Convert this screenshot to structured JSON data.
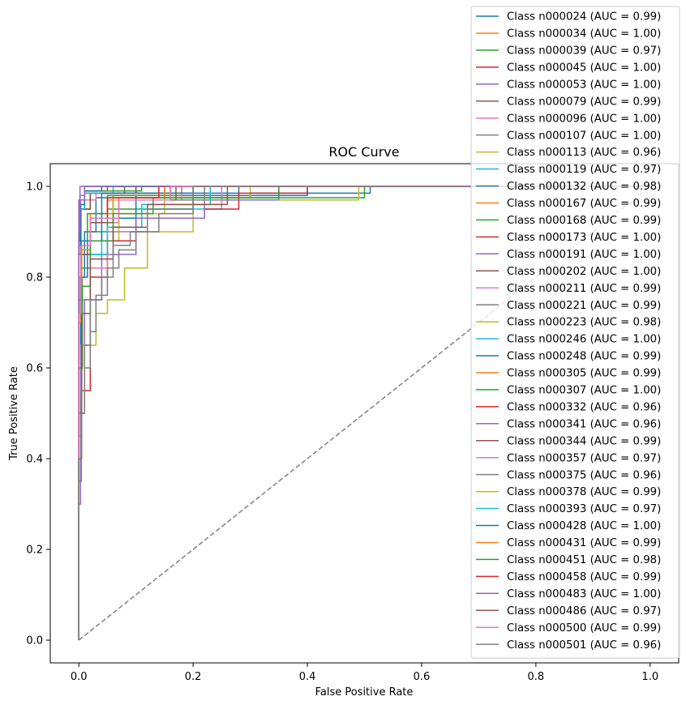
{
  "chart_data": {
    "type": "line",
    "title": "ROC Curve",
    "xlabel": "False Positive Rate",
    "ylabel": "True Positive Rate",
    "xlim": [
      -0.05,
      1.05
    ],
    "ylim": [
      -0.05,
      1.05
    ],
    "xticks": [
      "0.0",
      "0.2",
      "0.4",
      "0.6",
      "0.8",
      "1.0"
    ],
    "yticks": [
      "0.0",
      "0.2",
      "0.4",
      "0.6",
      "0.8",
      "1.0"
    ],
    "grid": false,
    "legend_position": "top-right",
    "series": [
      {
        "name": "Class n000024 (AUC = 0.99)",
        "color": "#1f77b4",
        "x": [
          0,
          0.0,
          0.003,
          0.003,
          0.01,
          0.01,
          0.03,
          0.03,
          0.3,
          0.3,
          0.51,
          0.51,
          1
        ],
        "y": [
          0,
          0.45,
          0.45,
          0.8,
          0.8,
          0.9,
          0.9,
          0.975,
          0.975,
          0.985,
          0.985,
          1,
          1
        ]
      },
      {
        "name": "Class n000034 (AUC = 1.00)",
        "color": "#ff7f0e",
        "x": [
          0,
          0.0,
          0.004,
          0.004,
          0.02,
          0.02,
          0.14,
          0.14,
          1
        ],
        "y": [
          0,
          0.8,
          0.8,
          0.95,
          0.95,
          0.985,
          0.985,
          1,
          1
        ]
      },
      {
        "name": "Class n000039 (AUC = 0.97)",
        "color": "#2ca02c",
        "x": [
          0,
          0.0,
          0.005,
          0.005,
          0.02,
          0.02,
          0.05,
          0.05,
          0.2,
          0.2,
          0.5,
          0.5,
          1
        ],
        "y": [
          0,
          0.6,
          0.6,
          0.82,
          0.82,
          0.9,
          0.9,
          0.95,
          0.95,
          0.975,
          0.975,
          1,
          1
        ]
      },
      {
        "name": "Class n000045 (AUC = 1.00)",
        "color": "#d62728",
        "x": [
          0,
          0.0,
          0.003,
          0.003,
          0.01,
          0.01,
          0.1,
          0.1,
          1
        ],
        "y": [
          0,
          0.85,
          0.85,
          0.95,
          0.95,
          0.985,
          0.985,
          1,
          1
        ]
      },
      {
        "name": "Class n000053 (AUC = 1.00)",
        "color": "#9467bd",
        "x": [
          0,
          0.0,
          0.002,
          0.002,
          1
        ],
        "y": [
          0,
          0.97,
          0.97,
          1,
          1
        ]
      },
      {
        "name": "Class n000079 (AUC = 0.99)",
        "color": "#8c564b",
        "x": [
          0,
          0.0,
          0.005,
          0.005,
          0.02,
          0.02,
          0.06,
          0.06,
          0.2,
          0.2,
          1
        ],
        "y": [
          0,
          0.7,
          0.7,
          0.85,
          0.85,
          0.92,
          0.92,
          0.97,
          0.97,
          1,
          1
        ]
      },
      {
        "name": "Class n000096 (AUC = 1.00)",
        "color": "#e377c2",
        "x": [
          0,
          0.0,
          0.003,
          0.003,
          0.03,
          0.03,
          0.15,
          0.15,
          1
        ],
        "y": [
          0,
          0.9,
          0.9,
          0.97,
          0.97,
          0.985,
          0.985,
          1,
          1
        ]
      },
      {
        "name": "Class n000107 (AUC = 1.00)",
        "color": "#7f7f7f",
        "x": [
          0,
          0.0,
          0.003,
          0.003,
          0.02,
          0.02,
          0.2,
          0.2,
          1
        ],
        "y": [
          0,
          0.88,
          0.88,
          0.95,
          0.95,
          0.985,
          0.985,
          1,
          1
        ]
      },
      {
        "name": "Class n000113 (AUC = 0.96)",
        "color": "#bcbd22",
        "x": [
          0,
          0.0,
          0.01,
          0.01,
          0.03,
          0.03,
          0.05,
          0.05,
          0.08,
          0.08,
          0.12,
          0.12,
          0.2,
          0.2,
          0.49,
          0.49,
          1
        ],
        "y": [
          0,
          0.5,
          0.5,
          0.65,
          0.65,
          0.72,
          0.72,
          0.75,
          0.75,
          0.82,
          0.82,
          0.9,
          0.9,
          0.97,
          0.97,
          1,
          1
        ]
      },
      {
        "name": "Class n000119 (AUC = 0.97)",
        "color": "#17becf",
        "x": [
          0,
          0.0,
          0.005,
          0.005,
          0.02,
          0.02,
          0.04,
          0.04,
          0.1,
          0.1,
          0.25,
          0.25,
          1
        ],
        "y": [
          0,
          0.6,
          0.6,
          0.75,
          0.75,
          0.85,
          0.85,
          0.9,
          0.9,
          0.95,
          0.95,
          1,
          1
        ]
      },
      {
        "name": "Class n000132 (AUC = 0.98)",
        "color": "#1f77b4",
        "x": [
          0,
          0.0,
          0.006,
          0.006,
          0.015,
          0.015,
          0.04,
          0.04,
          0.1,
          0.1,
          0.4,
          0.4,
          1
        ],
        "y": [
          0,
          0.6,
          0.6,
          0.8,
          0.8,
          0.88,
          0.88,
          0.93,
          0.93,
          0.98,
          0.98,
          1,
          1
        ]
      },
      {
        "name": "Class n000167 (AUC = 0.99)",
        "color": "#ff7f0e",
        "x": [
          0,
          0.0,
          0.004,
          0.004,
          0.02,
          0.02,
          0.06,
          0.06,
          0.15,
          0.15,
          1
        ],
        "y": [
          0,
          0.7,
          0.7,
          0.87,
          0.87,
          0.94,
          0.94,
          0.98,
          0.98,
          1,
          1
        ]
      },
      {
        "name": "Class n000168 (AUC = 0.99)",
        "color": "#2ca02c",
        "x": [
          0,
          0.0,
          0.004,
          0.004,
          0.015,
          0.015,
          0.05,
          0.05,
          0.18,
          0.18,
          1
        ],
        "y": [
          0,
          0.75,
          0.75,
          0.88,
          0.88,
          0.94,
          0.94,
          0.98,
          0.98,
          1,
          1
        ]
      },
      {
        "name": "Class n000173 (AUC = 1.00)",
        "color": "#d62728",
        "x": [
          0,
          0.0,
          0.002,
          0.002,
          0.01,
          0.01,
          0.05,
          0.05,
          1
        ],
        "y": [
          0,
          0.9,
          0.9,
          0.97,
          0.97,
          0.99,
          0.99,
          1,
          1
        ]
      },
      {
        "name": "Class n000191 (AUC = 1.00)",
        "color": "#9467bd",
        "x": [
          0,
          0.0,
          0.002,
          0.002,
          0.01,
          0.01,
          1
        ],
        "y": [
          0,
          0.93,
          0.93,
          0.98,
          0.98,
          1,
          1
        ]
      },
      {
        "name": "Class n000202 (AUC = 1.00)",
        "color": "#8c564b",
        "x": [
          0,
          0.0,
          0.003,
          0.003,
          0.02,
          0.02,
          0.08,
          0.08,
          1
        ],
        "y": [
          0,
          0.85,
          0.85,
          0.95,
          0.95,
          0.985,
          0.985,
          1,
          1
        ]
      },
      {
        "name": "Class n000211 (AUC = 0.99)",
        "color": "#e377c2",
        "x": [
          0,
          0.0,
          0.005,
          0.005,
          0.02,
          0.02,
          0.07,
          0.07,
          0.18,
          0.18,
          1
        ],
        "y": [
          0,
          0.7,
          0.7,
          0.85,
          0.85,
          0.92,
          0.92,
          0.97,
          0.97,
          1,
          1
        ]
      },
      {
        "name": "Class n000221 (AUC = 0.99)",
        "color": "#7f7f7f",
        "x": [
          0,
          0.0,
          0.004,
          0.004,
          0.02,
          0.02,
          0.05,
          0.05,
          0.22,
          0.22,
          1
        ],
        "y": [
          0,
          0.72,
          0.72,
          0.87,
          0.87,
          0.93,
          0.93,
          0.97,
          0.97,
          1,
          1
        ]
      },
      {
        "name": "Class n000223 (AUC = 0.98)",
        "color": "#bcbd22",
        "x": [
          0,
          0.0,
          0.006,
          0.006,
          0.02,
          0.02,
          0.07,
          0.07,
          0.15,
          0.15,
          0.3,
          0.3,
          1
        ],
        "y": [
          0,
          0.6,
          0.6,
          0.78,
          0.78,
          0.88,
          0.88,
          0.94,
          0.94,
          0.975,
          0.975,
          1,
          1
        ]
      },
      {
        "name": "Class n000246 (AUC = 1.00)",
        "color": "#17becf",
        "x": [
          0,
          0.0,
          0.003,
          0.003,
          0.01,
          0.01,
          0.06,
          0.06,
          1
        ],
        "y": [
          0,
          0.85,
          0.85,
          0.95,
          0.95,
          0.985,
          0.985,
          1,
          1
        ]
      },
      {
        "name": "Class n000248 (AUC = 0.99)",
        "color": "#1f77b4",
        "x": [
          0,
          0.0,
          0.004,
          0.004,
          0.02,
          0.02,
          0.04,
          0.04,
          0.28,
          0.28,
          1
        ],
        "y": [
          0,
          0.75,
          0.75,
          0.88,
          0.88,
          0.93,
          0.93,
          0.985,
          0.985,
          1,
          1
        ]
      },
      {
        "name": "Class n000305 (AUC = 0.99)",
        "color": "#ff7f0e",
        "x": [
          0,
          0.0,
          0.005,
          0.005,
          0.02,
          0.02,
          0.05,
          0.05,
          0.16,
          0.16,
          1
        ],
        "y": [
          0,
          0.72,
          0.72,
          0.87,
          0.87,
          0.93,
          0.93,
          0.97,
          0.97,
          1,
          1
        ]
      },
      {
        "name": "Class n000307 (AUC = 1.00)",
        "color": "#2ca02c",
        "x": [
          0,
          0.0,
          0.002,
          0.002,
          0.01,
          0.01,
          0.11,
          0.11,
          1
        ],
        "y": [
          0,
          0.88,
          0.88,
          0.96,
          0.96,
          0.99,
          0.99,
          1,
          1
        ]
      },
      {
        "name": "Class n000332 (AUC = 0.96)",
        "color": "#d62728",
        "x": [
          0,
          0.0,
          0.004,
          0.004,
          0.02,
          0.02,
          0.05,
          0.05,
          0.1,
          0.1,
          0.22,
          0.22,
          0.28,
          0.28,
          0.4,
          0.4,
          1
        ],
        "y": [
          0,
          0.35,
          0.35,
          0.55,
          0.55,
          0.8,
          0.8,
          0.88,
          0.88,
          0.93,
          0.93,
          0.95,
          0.95,
          0.985,
          0.985,
          1,
          1
        ]
      },
      {
        "name": "Class n000341 (AUC = 0.96)",
        "color": "#9467bd",
        "x": [
          0,
          0.0,
          0.003,
          0.003,
          0.01,
          0.01,
          0.04,
          0.04,
          0.1,
          0.1,
          0.22,
          0.22,
          0.35,
          0.35,
          1
        ],
        "y": [
          0,
          0.3,
          0.3,
          0.5,
          0.5,
          0.75,
          0.75,
          0.85,
          0.85,
          0.93,
          0.93,
          0.97,
          0.97,
          1,
          1
        ]
      },
      {
        "name": "Class n000344 (AUC = 0.99)",
        "color": "#8c564b",
        "x": [
          0,
          0.0,
          0.005,
          0.005,
          0.02,
          0.02,
          0.06,
          0.06,
          0.17,
          0.17,
          1
        ],
        "y": [
          0,
          0.7,
          0.7,
          0.85,
          0.85,
          0.92,
          0.92,
          0.97,
          0.97,
          1,
          1
        ]
      },
      {
        "name": "Class n000357 (AUC = 0.97)",
        "color": "#e377c2",
        "x": [
          0,
          0.0,
          0.004,
          0.004,
          0.02,
          0.02,
          0.05,
          0.05,
          0.12,
          0.12,
          0.25,
          0.25,
          1
        ],
        "y": [
          0,
          0.4,
          0.4,
          0.65,
          0.65,
          0.82,
          0.82,
          0.9,
          0.9,
          0.96,
          0.96,
          1,
          1
        ]
      },
      {
        "name": "Class n000375 (AUC = 0.96)",
        "color": "#7f7f7f",
        "x": [
          0,
          0.0,
          0.005,
          0.005,
          0.01,
          0.01,
          0.02,
          0.02,
          0.03,
          0.03,
          0.05,
          0.05,
          0.07,
          0.07,
          0.1,
          0.1,
          0.14,
          0.14,
          0.2,
          0.2,
          1
        ],
        "y": [
          0,
          0.4,
          0.4,
          0.5,
          0.5,
          0.6,
          0.6,
          0.68,
          0.68,
          0.76,
          0.76,
          0.82,
          0.82,
          0.86,
          0.86,
          0.9,
          0.9,
          0.94,
          0.94,
          1,
          1
        ]
      },
      {
        "name": "Class n000378 (AUC = 0.99)",
        "color": "#bcbd22",
        "x": [
          0,
          0.0,
          0.004,
          0.004,
          0.02,
          0.02,
          0.06,
          0.06,
          0.16,
          0.16,
          1
        ],
        "y": [
          0,
          0.72,
          0.72,
          0.86,
          0.86,
          0.93,
          0.93,
          0.97,
          0.97,
          1,
          1
        ]
      },
      {
        "name": "Class n000393 (AUC = 0.97)",
        "color": "#17becf",
        "x": [
          0,
          0.0,
          0.005,
          0.005,
          0.02,
          0.02,
          0.05,
          0.05,
          0.11,
          0.11,
          0.23,
          0.23,
          1
        ],
        "y": [
          0,
          0.5,
          0.5,
          0.72,
          0.72,
          0.85,
          0.85,
          0.91,
          0.91,
          0.96,
          0.96,
          1,
          1
        ]
      },
      {
        "name": "Class n000428 (AUC = 1.00)",
        "color": "#1f77b4",
        "x": [
          0,
          0.0,
          0.003,
          0.003,
          0.01,
          0.01,
          0.04,
          0.04,
          1
        ],
        "y": [
          0,
          0.87,
          0.87,
          0.96,
          0.96,
          0.99,
          0.99,
          1,
          1
        ]
      },
      {
        "name": "Class n000431 (AUC = 0.99)",
        "color": "#ff7f0e",
        "x": [
          0,
          0.0,
          0.005,
          0.005,
          0.02,
          0.02,
          0.07,
          0.07,
          0.15,
          0.15,
          1
        ],
        "y": [
          0,
          0.7,
          0.7,
          0.86,
          0.86,
          0.93,
          0.93,
          0.975,
          0.975,
          1,
          1
        ]
      },
      {
        "name": "Class n000451 (AUC = 0.98)",
        "color": "#2ca02c",
        "x": [
          0,
          0.0,
          0.006,
          0.006,
          0.02,
          0.02,
          0.06,
          0.06,
          0.13,
          0.13,
          0.35,
          0.35,
          1
        ],
        "y": [
          0,
          0.6,
          0.6,
          0.78,
          0.78,
          0.88,
          0.88,
          0.94,
          0.94,
          0.975,
          0.975,
          1,
          1
        ]
      },
      {
        "name": "Class n000458 (AUC = 0.99)",
        "color": "#d62728",
        "x": [
          0,
          0.0,
          0.004,
          0.004,
          0.02,
          0.02,
          0.05,
          0.05,
          0.14,
          0.14,
          1
        ],
        "y": [
          0,
          0.72,
          0.72,
          0.87,
          0.87,
          0.93,
          0.93,
          0.975,
          0.975,
          1,
          1
        ]
      },
      {
        "name": "Class n000483 (AUC = 1.00)",
        "color": "#9467bd",
        "x": [
          0,
          0.0,
          0.002,
          0.002,
          0.01,
          0.01,
          1
        ],
        "y": [
          0,
          0.9,
          0.9,
          0.97,
          0.97,
          1,
          1
        ]
      },
      {
        "name": "Class n000486 (AUC = 0.97)",
        "color": "#8c564b",
        "x": [
          0,
          0.0,
          0.005,
          0.005,
          0.02,
          0.02,
          0.06,
          0.06,
          0.12,
          0.12,
          0.26,
          0.26,
          1
        ],
        "y": [
          0,
          0.5,
          0.5,
          0.72,
          0.72,
          0.84,
          0.84,
          0.91,
          0.91,
          0.96,
          0.96,
          1,
          1
        ]
      },
      {
        "name": "Class n000500 (AUC = 0.99)",
        "color": "#e377c2",
        "x": [
          0,
          0.0,
          0.004,
          0.004,
          0.02,
          0.02,
          0.07,
          0.07,
          0.16,
          0.16,
          1
        ],
        "y": [
          0,
          0.72,
          0.72,
          0.87,
          0.87,
          0.93,
          0.93,
          0.97,
          0.97,
          1,
          1
        ]
      },
      {
        "name": "Class n000501 (AUC = 0.96)",
        "color": "#7f7f7f",
        "x": [
          0,
          0.0,
          0.004,
          0.004,
          0.01,
          0.01,
          0.02,
          0.02,
          0.04,
          0.04,
          0.06,
          0.06,
          0.09,
          0.09,
          0.12,
          0.12,
          0.2,
          0.2,
          1
        ],
        "y": [
          0,
          0.4,
          0.4,
          0.55,
          0.55,
          0.65,
          0.65,
          0.75,
          0.75,
          0.8,
          0.8,
          0.87,
          0.87,
          0.9,
          0.9,
          0.95,
          0.95,
          1,
          1
        ]
      }
    ],
    "reference_line": {
      "x": [
        0,
        1
      ],
      "y": [
        0,
        1
      ],
      "color": "#808080",
      "style": "dashed"
    }
  }
}
